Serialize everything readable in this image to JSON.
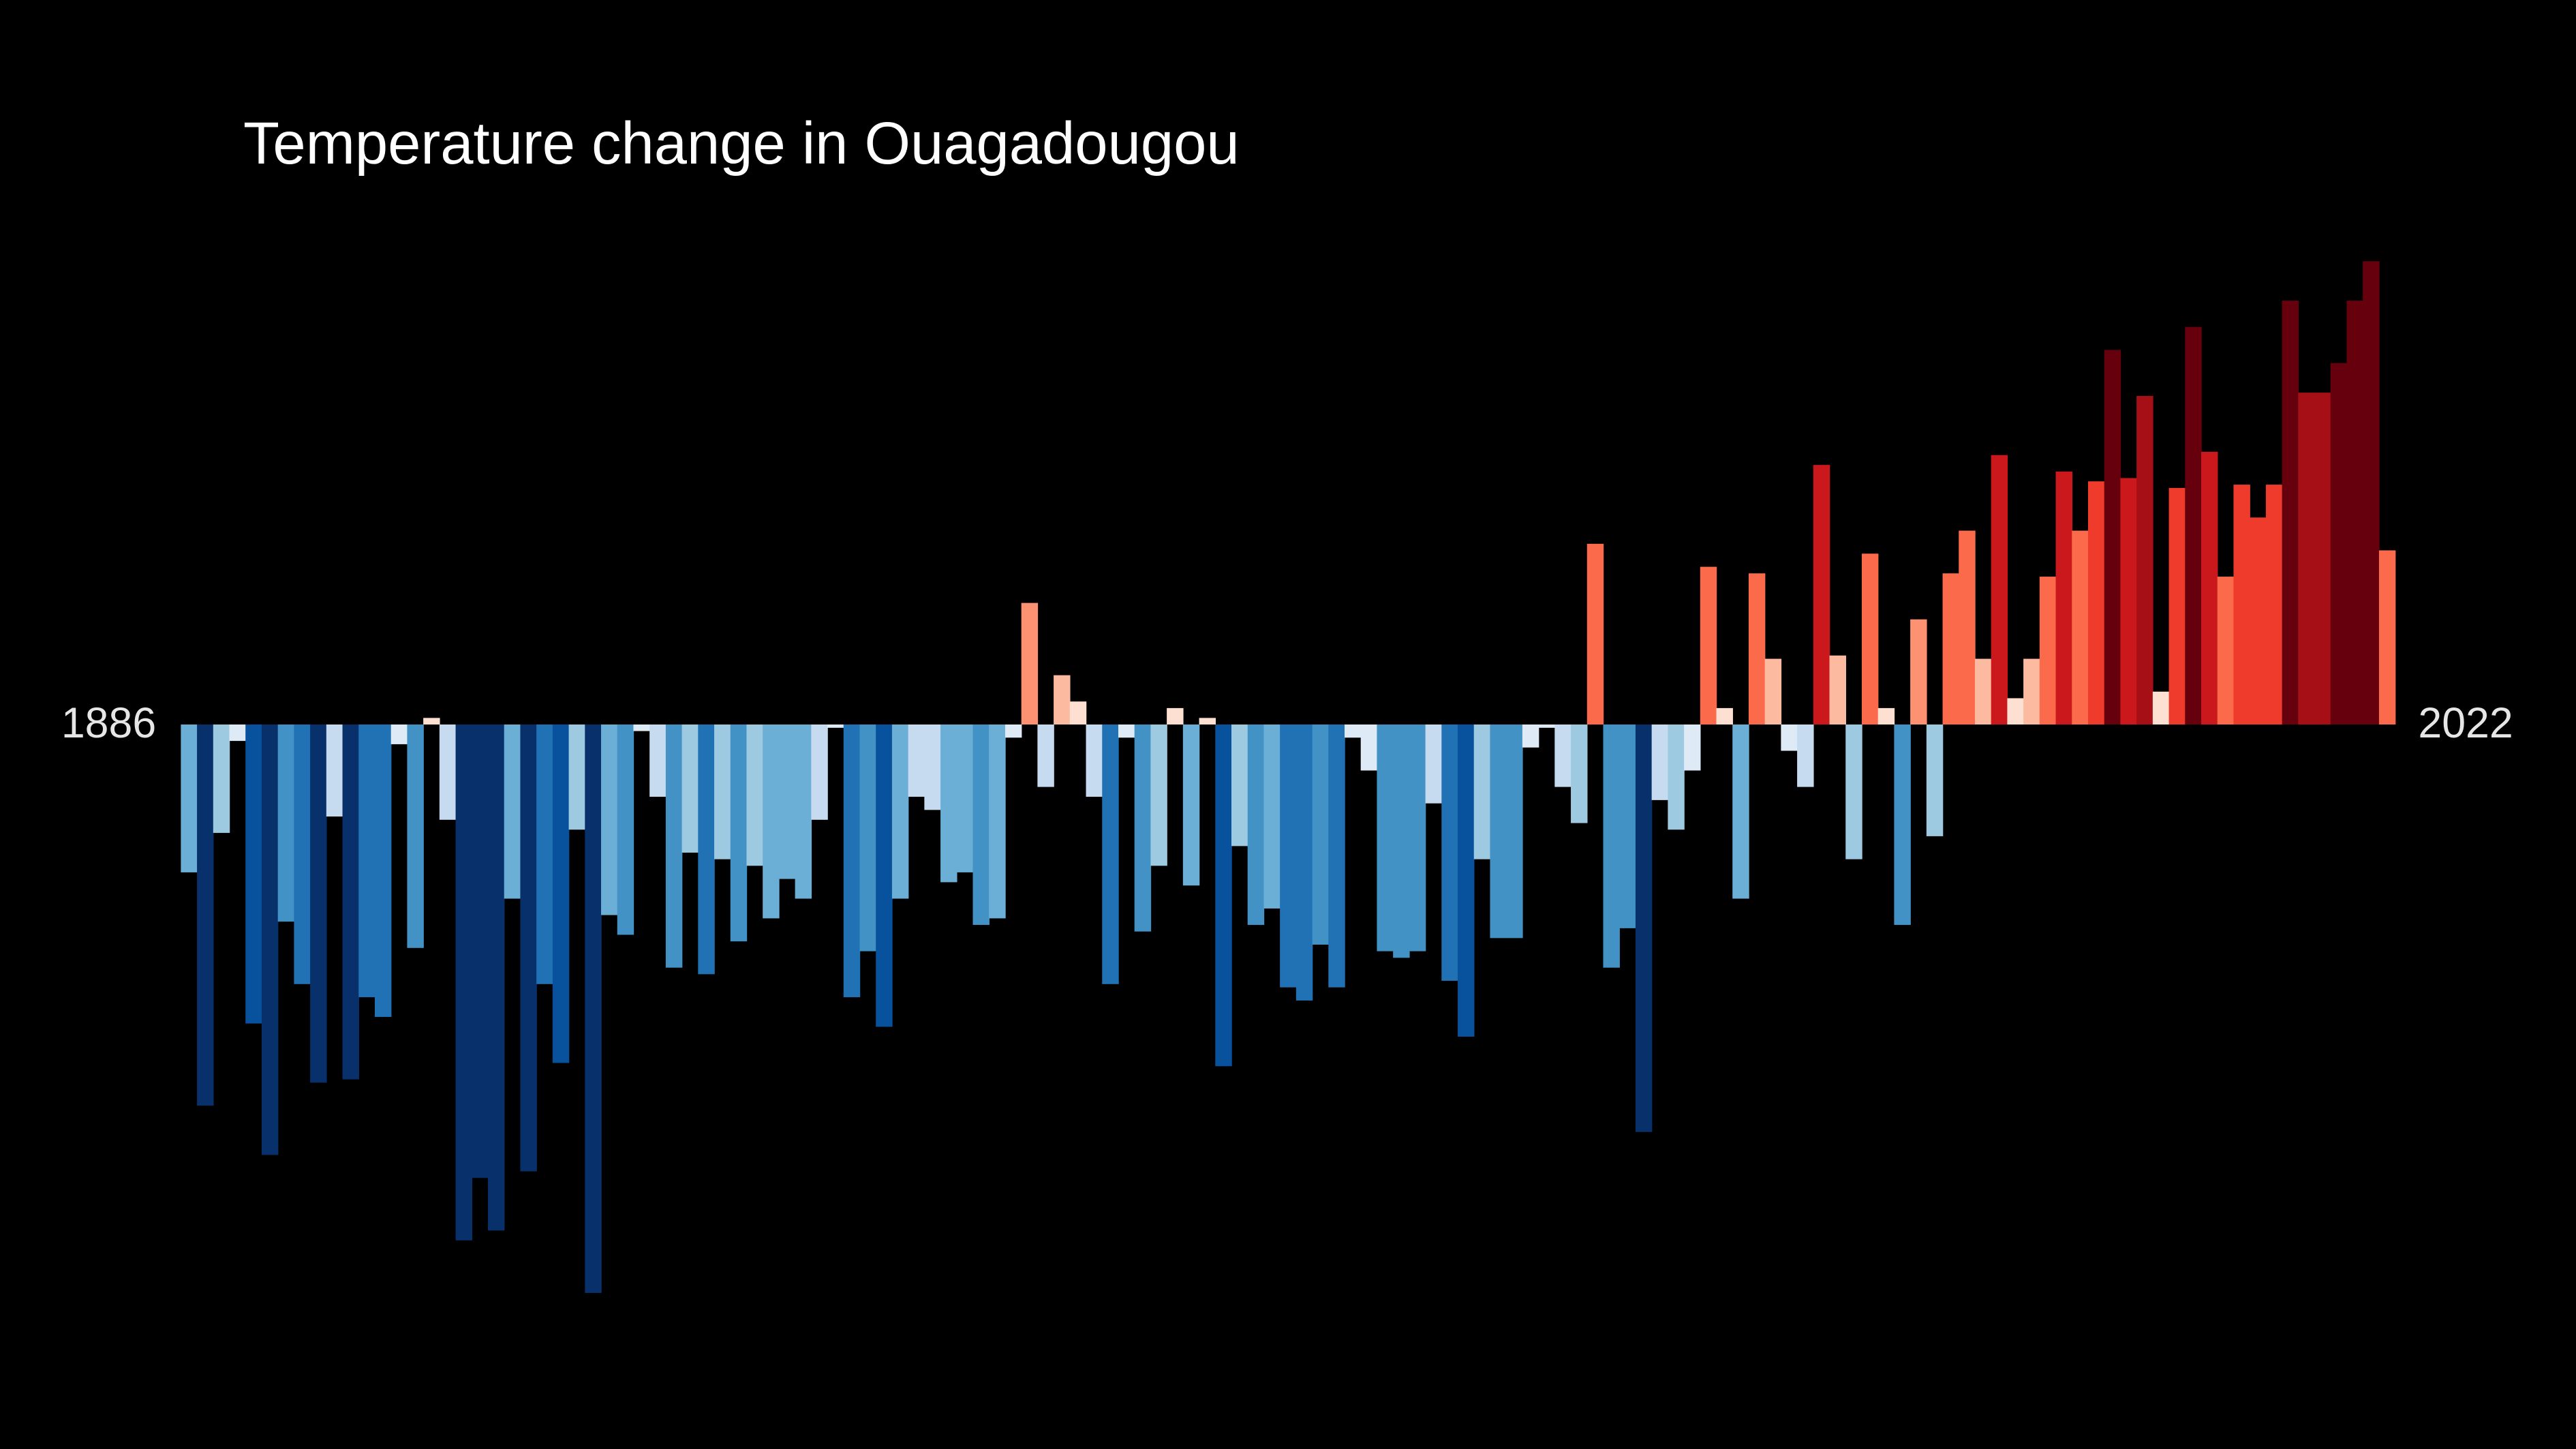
{
  "chart_data": {
    "type": "bar",
    "title": "Temperature change in Ouagadougou",
    "categories": [
      "1886",
      null,
      null,
      null,
      null,
      null,
      null,
      null,
      null,
      null,
      null,
      null,
      null,
      null,
      null,
      null,
      null,
      null,
      null,
      null,
      null,
      null,
      null,
      null,
      null,
      null,
      null,
      null,
      null,
      null,
      null,
      null,
      null,
      null,
      null,
      null,
      null,
      null,
      null,
      null,
      null,
      null,
      null,
      null,
      null,
      null,
      null,
      null,
      null,
      null,
      null,
      null,
      null,
      null,
      null,
      null,
      null,
      null,
      null,
      null,
      null,
      null,
      null,
      null,
      null,
      null,
      null,
      null,
      null,
      null,
      null,
      null,
      null,
      null,
      null,
      null,
      null,
      null,
      null,
      null,
      null,
      null,
      null,
      null,
      null,
      null,
      null,
      null,
      null,
      null,
      null,
      null,
      null,
      null,
      null,
      null,
      null,
      null,
      null,
      null,
      null,
      null,
      null,
      null,
      null,
      null,
      null,
      null,
      null,
      null,
      null,
      null,
      null,
      null,
      null,
      null,
      null,
      null,
      null,
      null,
      null,
      null,
      null,
      null,
      null,
      null,
      null,
      null,
      null,
      null,
      null,
      null,
      null,
      null,
      null,
      null,
      "2022"
    ],
    "values": [
      -0.45,
      -1.16,
      -0.33,
      -0.05,
      -0.91,
      -1.31,
      -0.6,
      -0.79,
      -1.09,
      -0.28,
      -1.08,
      -0.83,
      -0.89,
      -0.06,
      -0.68,
      0.02,
      -0.29,
      -1.57,
      -1.38,
      -1.54,
      -0.53,
      -1.36,
      -0.79,
      -1.03,
      -0.32,
      -1.73,
      -0.58,
      -0.64,
      -0.02,
      -0.22,
      -0.74,
      -0.39,
      -0.76,
      -0.41,
      -0.66,
      -0.43,
      -0.59,
      -0.47,
      -0.53,
      -0.29,
      -0.01,
      -0.83,
      -0.69,
      -0.92,
      -0.53,
      -0.22,
      -0.26,
      -0.48,
      -0.45,
      -0.61,
      -0.59,
      -0.04,
      0.37,
      -0.19,
      0.15,
      0.07,
      -0.22,
      -0.79,
      -0.04,
      -0.63,
      -0.43,
      0.05,
      -0.49,
      0.02,
      -1.04,
      -0.37,
      -0.61,
      -0.56,
      -0.8,
      -0.84,
      -0.67,
      -0.8,
      -0.04,
      -0.14,
      -0.69,
      -0.71,
      -0.69,
      -0.24,
      -0.78,
      -0.95,
      -0.41,
      -0.65,
      -0.65,
      -0.07,
      -0.01,
      -0.19,
      -0.3,
      0.55,
      -0.74,
      -0.62,
      -1.24,
      -0.23,
      -0.32,
      -0.14,
      0.48,
      0.05,
      -0.53,
      0.46,
      0.2,
      -0.08,
      -0.19,
      0.79,
      0.21,
      -0.41,
      0.52,
      0.05,
      -0.61,
      0.32,
      -0.34,
      0.46,
      0.59,
      0.2,
      0.82,
      0.08,
      0.2,
      0.45,
      0.77,
      0.59,
      0.74,
      1.14,
      0.75,
      1.0,
      0.1,
      0.72,
      1.21,
      0.83,
      0.45,
      0.73,
      0.63,
      0.73,
      1.29,
      1.01,
      1.01,
      1.1,
      1.29,
      1.41,
      0.53
    ],
    "ylim": [
      -2.2,
      2.2
    ],
    "colormap": {
      "step": 0.15,
      "negative": [
        "#deebf7",
        "#c6dbef",
        "#9ecae1",
        "#6baed6",
        "#4292c6",
        "#2171b5",
        "#08519c",
        "#08306b"
      ],
      "positive": [
        "#fee0d2",
        "#fcbba1",
        "#fc9272",
        "#fb6a4a",
        "#ef3b2c",
        "#cb181d",
        "#a50f15",
        "#67000d"
      ]
    },
    "background": "#000000"
  }
}
